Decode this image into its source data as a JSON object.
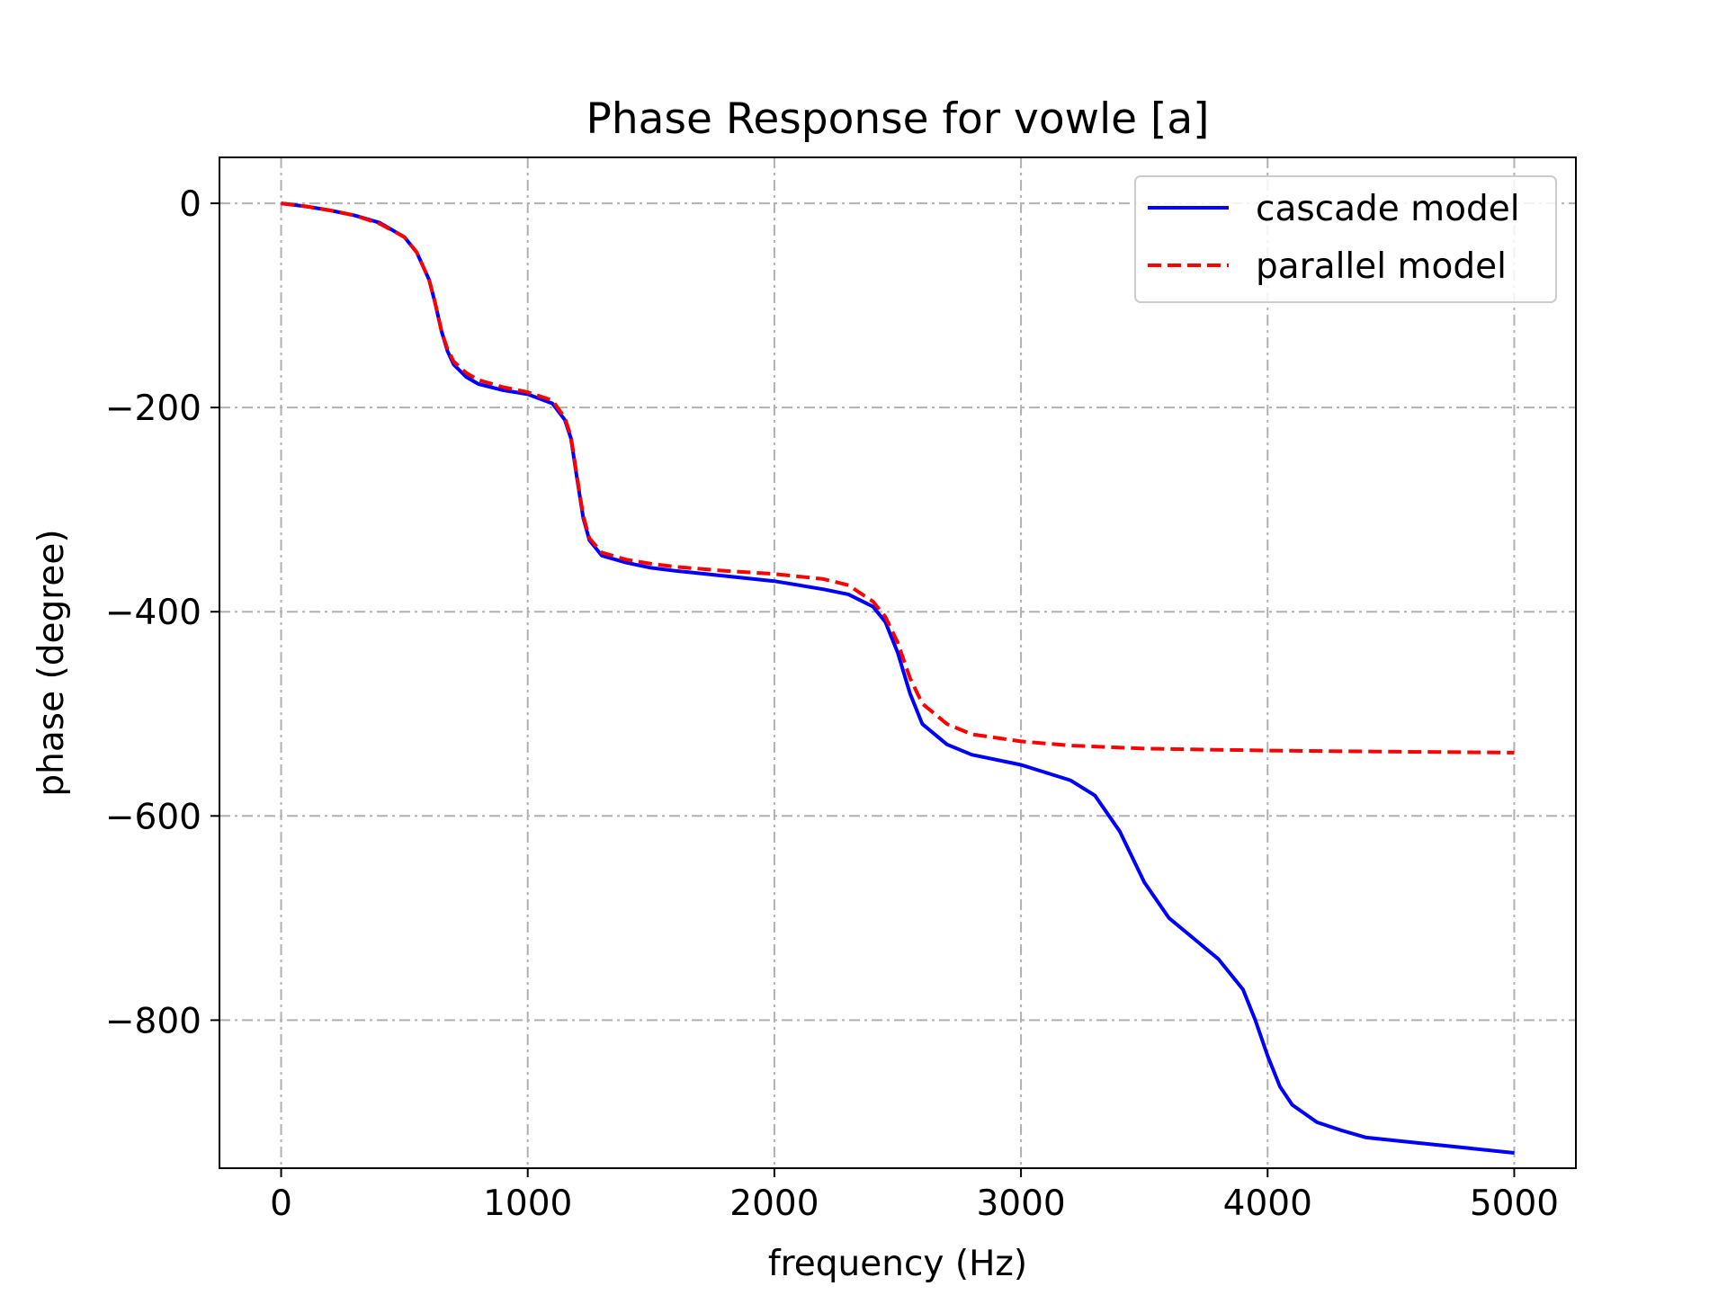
{
  "chart_data": {
    "type": "line",
    "title": "Phase Response for vowle [a]",
    "xlabel": "frequency (Hz)",
    "ylabel": "phase (degree)",
    "xlim": [
      -250,
      5250
    ],
    "ylim": [
      -945,
      45
    ],
    "xticks": [
      0,
      1000,
      2000,
      3000,
      4000,
      5000
    ],
    "xtick_labels": [
      "0",
      "1000",
      "2000",
      "3000",
      "4000",
      "5000"
    ],
    "yticks": [
      0,
      -200,
      -400,
      -600,
      -800
    ],
    "ytick_labels": [
      "0",
      "−200",
      "−400",
      "−600",
      "−800"
    ],
    "grid": true,
    "legend_position": "top-right",
    "series": [
      {
        "name": "cascade model",
        "color": "#0000ff",
        "style": "solid",
        "x": [
          0,
          100,
          200,
          300,
          400,
          500,
          550,
          600,
          625,
          650,
          675,
          700,
          750,
          800,
          900,
          1000,
          1100,
          1150,
          1175,
          1200,
          1225,
          1250,
          1300,
          1400,
          1500,
          1600,
          1800,
          2000,
          2200,
          2300,
          2400,
          2450,
          2500,
          2550,
          2600,
          2700,
          2800,
          3000,
          3200,
          3300,
          3400,
          3500,
          3600,
          3700,
          3800,
          3900,
          3950,
          4000,
          4050,
          4100,
          4200,
          4300,
          4400,
          4600,
          4800,
          5000
        ],
        "y": [
          0,
          -3,
          -7,
          -12,
          -19,
          -33,
          -48,
          -75,
          -98,
          -125,
          -145,
          -158,
          -170,
          -177,
          -183,
          -187,
          -196,
          -212,
          -230,
          -270,
          -308,
          -330,
          -345,
          -352,
          -357,
          -360,
          -365,
          -370,
          -378,
          -383,
          -395,
          -410,
          -440,
          -480,
          -510,
          -530,
          -540,
          -550,
          -565,
          -580,
          -615,
          -665,
          -700,
          -720,
          -740,
          -770,
          -800,
          -835,
          -865,
          -883,
          -900,
          -908,
          -915,
          -920,
          -925,
          -930
        ]
      },
      {
        "name": "parallel model",
        "color": "#ff0000",
        "style": "dashed",
        "x": [
          0,
          100,
          200,
          300,
          400,
          500,
          550,
          600,
          625,
          650,
          675,
          700,
          750,
          800,
          900,
          1000,
          1100,
          1150,
          1175,
          1200,
          1225,
          1250,
          1300,
          1400,
          1500,
          1600,
          1800,
          2000,
          2200,
          2300,
          2400,
          2450,
          2500,
          2550,
          2600,
          2700,
          2800,
          3000,
          3200,
          3500,
          4000,
          4500,
          5000
        ],
        "y": [
          0,
          -3,
          -7,
          -12,
          -20,
          -33,
          -48,
          -75,
          -98,
          -125,
          -143,
          -155,
          -166,
          -173,
          -180,
          -185,
          -193,
          -210,
          -228,
          -268,
          -306,
          -328,
          -342,
          -349,
          -353,
          -356,
          -360,
          -363,
          -368,
          -374,
          -390,
          -405,
          -430,
          -465,
          -490,
          -510,
          -520,
          -527,
          -531,
          -534,
          -536,
          -537,
          -538
        ]
      }
    ]
  }
}
